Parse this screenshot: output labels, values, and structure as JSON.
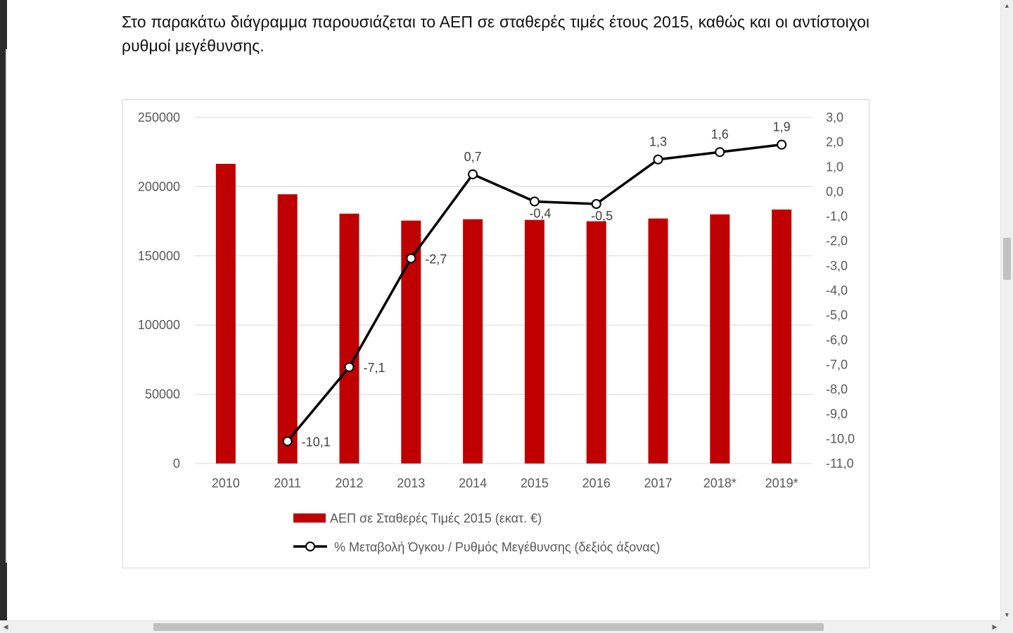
{
  "document": {
    "intro_text": "Στο παρακάτω διάγραμμα παρουσιάζεται το ΑΕΠ σε σταθερές τιμές έτους 2015, καθώς και οι αντίστοιχοι ρυθμοί μεγέθυνσης."
  },
  "colors": {
    "bar": "#C00000",
    "line": "#000000",
    "grid": "#d9d9d9",
    "axis_text": "#595959"
  },
  "chart_data": {
    "type": "bar",
    "title": "",
    "categories": [
      "2010",
      "2011",
      "2012",
      "2013",
      "2014",
      "2015",
      "2016",
      "2017",
      "2018*",
      "2019*"
    ],
    "series": [
      {
        "name": "ΑΕΠ σε Σταθερές Τιμές 2015 (εκατ. €)",
        "type": "bar",
        "axis": "left",
        "values": [
          216500,
          194500,
          180500,
          175500,
          176500,
          176000,
          175000,
          177000,
          180000,
          183500
        ]
      },
      {
        "name": "% Μεταβολή Όγκου / Ρυθμός Μεγέθυνσης (δεξιός άξονας)",
        "type": "line",
        "axis": "right",
        "values": [
          null,
          -10.1,
          -7.1,
          -2.7,
          0.7,
          -0.4,
          -0.5,
          1.3,
          1.6,
          1.9
        ],
        "labels": [
          null,
          "-10,1",
          "-7,1",
          "-2,7",
          "0,7",
          "-0,4",
          "-0,5",
          "1,3",
          "1,6",
          "1,9"
        ]
      }
    ],
    "y_left": {
      "min": 0,
      "max": 250000,
      "ticks": [
        "0",
        "50000",
        "100000",
        "150000",
        "200000",
        "250000"
      ]
    },
    "y_right": {
      "min": -11,
      "max": 3,
      "ticks": [
        "-11,0",
        "-10,0",
        "-9,0",
        "-8,0",
        "-7,0",
        "-6,0",
        "-5,0",
        "-4,0",
        "-3,0",
        "-2,0",
        "-1,0",
        "0,0",
        "1,0",
        "2,0",
        "3,0"
      ]
    },
    "grid": true,
    "legend_position": "bottom"
  }
}
